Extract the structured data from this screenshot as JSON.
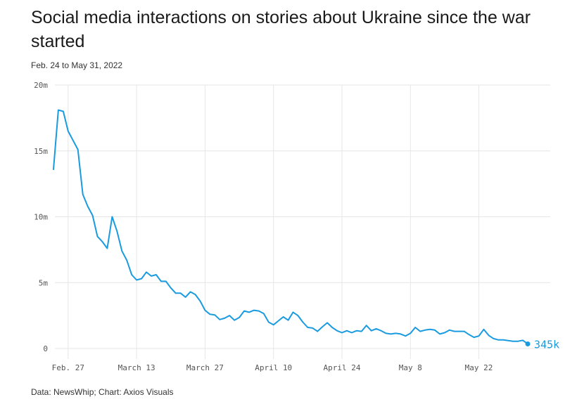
{
  "header": {
    "title": "Social media interactions on stories about Ukraine since the war started",
    "subtitle": "Feb. 24 to May 31, 2022"
  },
  "footer": {
    "source": "Data: NewsWhip; Chart: Axios Visuals"
  },
  "colors": {
    "line": "#1a9be0",
    "grid": "#e6e6e6"
  },
  "chart_data": {
    "type": "line",
    "title": "Social media interactions on stories about Ukraine since the war started",
    "subtitle": "Feb. 24 to May 31, 2022",
    "xlabel": "",
    "ylabel": "",
    "ylim": [
      0,
      20
    ],
    "yunit": "millions",
    "yticks": [
      0,
      5,
      10,
      15,
      20
    ],
    "ytick_labels": [
      "0",
      "5m",
      "10m",
      "15m",
      "20m"
    ],
    "xticks": [
      3,
      17,
      31,
      45,
      59,
      73,
      87
    ],
    "xtick_labels": [
      "Feb. 27",
      "March 13",
      "March 27",
      "April 10",
      "April 24",
      "May 8",
      "May 22"
    ],
    "x_start": "Feb. 24",
    "grid": true,
    "end_label": "345k",
    "series": [
      {
        "name": "Interactions",
        "x": [
          0,
          1,
          2,
          3,
          4,
          5,
          6,
          7,
          8,
          9,
          10,
          11,
          12,
          13,
          14,
          15,
          16,
          17,
          18,
          19,
          20,
          21,
          22,
          23,
          24,
          25,
          26,
          27,
          28,
          29,
          30,
          31,
          32,
          33,
          34,
          35,
          36,
          37,
          38,
          39,
          40,
          41,
          42,
          43,
          44,
          45,
          46,
          47,
          48,
          49,
          50,
          51,
          52,
          53,
          54,
          55,
          56,
          57,
          58,
          59,
          60,
          61,
          62,
          63,
          64,
          65,
          66,
          67,
          68,
          69,
          70,
          71,
          72,
          73,
          74,
          75,
          76,
          77,
          78,
          79,
          80,
          81,
          82,
          83,
          84,
          85,
          86,
          87,
          88,
          89,
          90,
          91,
          92,
          93,
          94,
          95,
          96,
          97
        ],
        "values": [
          13.6,
          18.1,
          18.0,
          16.5,
          15.8,
          15.1,
          11.7,
          10.8,
          10.1,
          8.5,
          8.1,
          7.6,
          10.0,
          8.9,
          7.4,
          6.7,
          5.6,
          5.2,
          5.3,
          5.8,
          5.5,
          5.6,
          5.1,
          5.1,
          4.6,
          4.2,
          4.2,
          3.9,
          4.3,
          4.1,
          3.6,
          2.9,
          2.6,
          2.55,
          2.2,
          2.3,
          2.5,
          2.15,
          2.35,
          2.85,
          2.75,
          2.9,
          2.85,
          2.65,
          2.0,
          1.8,
          2.1,
          2.4,
          2.15,
          2.75,
          2.5,
          2.0,
          1.6,
          1.55,
          1.3,
          1.65,
          1.95,
          1.6,
          1.35,
          1.2,
          1.35,
          1.2,
          1.35,
          1.3,
          1.75,
          1.35,
          1.5,
          1.35,
          1.15,
          1.1,
          1.15,
          1.1,
          0.95,
          1.15,
          1.6,
          1.3,
          1.4,
          1.45,
          1.4,
          1.1,
          1.2,
          1.4,
          1.3,
          1.3,
          1.3,
          1.05,
          0.85,
          0.95,
          1.45,
          1.0,
          0.75,
          0.65,
          0.65,
          0.6,
          0.55,
          0.55,
          0.62,
          0.345
        ]
      }
    ]
  }
}
